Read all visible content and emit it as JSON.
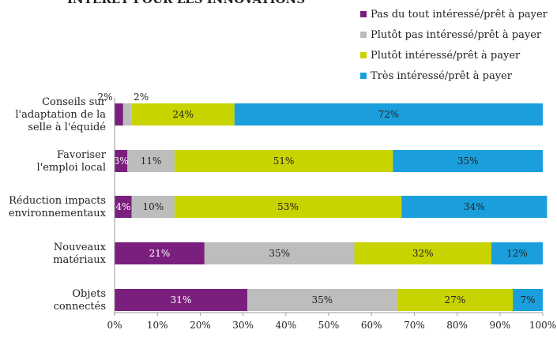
{
  "chart_data": {
    "type": "bar",
    "orientation": "horizontal",
    "stacked": true,
    "title": "INTÉRÊT POUR LES INNOVATIONS",
    "categories": [
      "Conseils sur l'adaptation de la selle à l'équidé",
      "Favoriser l'emploi local",
      "Réduction impacts environnementaux",
      "Nouveaux matériaux",
      "Objets connectés"
    ],
    "category_lines": [
      [
        "Conseils sur",
        "l'adaptation de la",
        "selle à l'équidé"
      ],
      [
        "Favoriser",
        "l'emploi local"
      ],
      [
        "Réduction impacts",
        "environnementaux"
      ],
      [
        "Nouveaux",
        "matériaux"
      ],
      [
        "Objets",
        "connectés"
      ]
    ],
    "series": [
      {
        "name": "Pas du tout intéressé/prêt à payer",
        "color": "#7b1f7f",
        "values": [
          2,
          3,
          4,
          21,
          31
        ],
        "labels": [
          "2%",
          "3%",
          "4%",
          "21%",
          "31%"
        ]
      },
      {
        "name": "Plutôt pas intéressé/prêt à payer",
        "color": "#bdbdbd",
        "values": [
          2,
          11,
          10,
          35,
          35
        ],
        "labels": [
          "2%",
          "11%",
          "10%",
          "35%",
          "35%"
        ]
      },
      {
        "name": "Plutôt intéressé/prêt à payer",
        "color": "#c8d400",
        "values": [
          24,
          51,
          53,
          32,
          27
        ],
        "labels": [
          "24%",
          "51%",
          "53%",
          "32%",
          "27%"
        ]
      },
      {
        "name": "Très intéressé/prêt à payer",
        "color": "#1a9fdc",
        "values": [
          72,
          35,
          34,
          12,
          7
        ],
        "labels": [
          "72%",
          "35%",
          "34%",
          "12%",
          "7%"
        ]
      }
    ],
    "xlim": [
      0,
      100
    ],
    "x_ticks": [
      "0%",
      "10%",
      "20%",
      "30%",
      "40%",
      "50%",
      "60%",
      "70%",
      "80%",
      "90%",
      "100%"
    ],
    "legend_position": "top-right",
    "grid": false
  }
}
